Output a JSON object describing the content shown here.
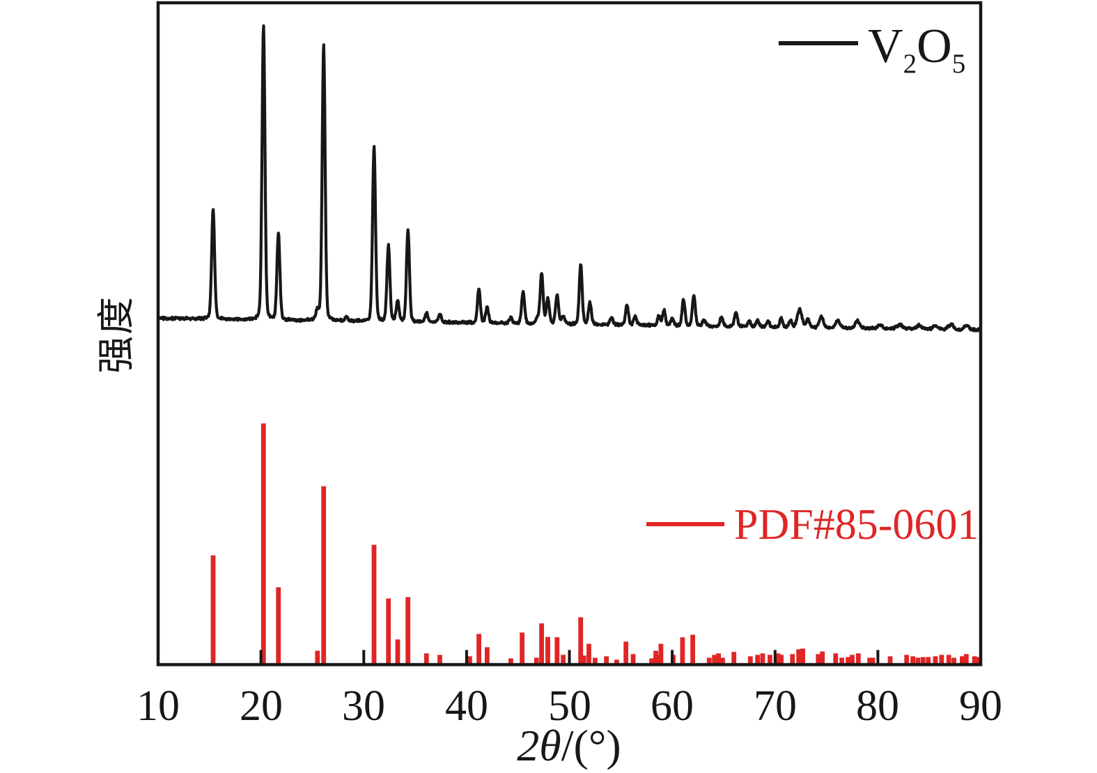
{
  "colors": {
    "background": "#ffffff",
    "ink": "#171717",
    "accent_red": "#e02525"
  },
  "y_axis": {
    "label": "强度"
  },
  "x_axis": {
    "label_italic": "2θ",
    "label_rest": "/(°)",
    "tick_labels": [
      "10",
      "20",
      "30",
      "40",
      "50",
      "60",
      "70",
      "80",
      "90"
    ]
  },
  "legends": {
    "sample": {
      "formula_base1": "V",
      "formula_sub1": "2",
      "formula_base2": "O",
      "formula_sub2": "5",
      "plain": "V2O5"
    },
    "reference": {
      "label": "PDF#85-0601"
    }
  },
  "chart_data": [
    {
      "type": "line",
      "name": "V2O5 measured XRD pattern",
      "xlabel": "2θ/(°)",
      "ylabel": "强度",
      "x_range": [
        10,
        90
      ],
      "x_ticks": [
        10,
        20,
        30,
        40,
        50,
        60,
        70,
        80,
        90
      ],
      "grid": false,
      "legend_position": "top-right",
      "peaks": [
        {
          "two_theta": 15.35,
          "rel_i": 37.5
        },
        {
          "two_theta": 20.25,
          "rel_i": 100
        },
        {
          "two_theta": 21.7,
          "rel_i": 29.5
        },
        {
          "two_theta": 25.5,
          "rel_i": 3.3
        },
        {
          "two_theta": 26.1,
          "rel_i": 94.0
        },
        {
          "two_theta": 28.3,
          "rel_i": 1.4
        },
        {
          "two_theta": 31.0,
          "rel_i": 59.6
        },
        {
          "two_theta": 32.4,
          "rel_i": 25.9
        },
        {
          "two_theta": 33.3,
          "rel_i": 6.9
        },
        {
          "two_theta": 34.3,
          "rel_i": 31.6
        },
        {
          "two_theta": 36.1,
          "rel_i": 2.9
        },
        {
          "two_theta": 37.4,
          "rel_i": 2.9
        },
        {
          "two_theta": 41.2,
          "rel_i": 11.6
        },
        {
          "two_theta": 42.0,
          "rel_i": 5.0
        },
        {
          "two_theta": 44.3,
          "rel_i": 1.9
        },
        {
          "two_theta": 45.5,
          "rel_i": 10.9
        },
        {
          "two_theta": 46.9,
          "rel_i": 1.9
        },
        {
          "two_theta": 47.3,
          "rel_i": 16.9
        },
        {
          "two_theta": 47.9,
          "rel_i": 8.6
        },
        {
          "two_theta": 48.8,
          "rel_i": 9.7
        },
        {
          "two_theta": 49.4,
          "rel_i": 2.9
        },
        {
          "two_theta": 51.1,
          "rel_i": 20.4
        },
        {
          "two_theta": 52.0,
          "rel_i": 7.4
        },
        {
          "two_theta": 54.1,
          "rel_i": 2.4
        },
        {
          "two_theta": 55.6,
          "rel_i": 6.9
        },
        {
          "two_theta": 56.4,
          "rel_i": 2.9
        },
        {
          "two_theta": 58.7,
          "rel_i": 3.3
        },
        {
          "two_theta": 59.2,
          "rel_i": 5.0
        },
        {
          "two_theta": 60.0,
          "rel_i": 2.4
        },
        {
          "two_theta": 61.1,
          "rel_i": 8.8
        },
        {
          "two_theta": 62.1,
          "rel_i": 10.5
        },
        {
          "two_theta": 63.1,
          "rel_i": 2.1
        },
        {
          "two_theta": 64.8,
          "rel_i": 3.3
        },
        {
          "two_theta": 66.2,
          "rel_i": 5.0
        },
        {
          "two_theta": 67.5,
          "rel_i": 1.9
        },
        {
          "two_theta": 68.3,
          "rel_i": 2.1
        },
        {
          "two_theta": 69.3,
          "rel_i": 2.1
        },
        {
          "two_theta": 70.6,
          "rel_i": 3.1
        },
        {
          "two_theta": 71.5,
          "rel_i": 2.1
        },
        {
          "two_theta": 72.4,
          "rel_i": 6.2,
          "w": 0.22
        },
        {
          "two_theta": 73.2,
          "rel_i": 2.9
        },
        {
          "two_theta": 74.5,
          "rel_i": 3.8,
          "w": 0.2
        },
        {
          "two_theta": 76.1,
          "rel_i": 2.6,
          "w": 0.2
        },
        {
          "two_theta": 78.0,
          "rel_i": 2.6,
          "w": 0.22
        },
        {
          "two_theta": 80.2,
          "rel_i": 1.2,
          "w": 0.25
        },
        {
          "two_theta": 82.1,
          "rel_i": 1.4,
          "w": 0.25
        },
        {
          "two_theta": 84.0,
          "rel_i": 1.4,
          "w": 0.25
        },
        {
          "two_theta": 85.6,
          "rel_i": 1.4,
          "w": 0.25
        },
        {
          "two_theta": 87.1,
          "rel_i": 1.7,
          "w": 0.25
        },
        {
          "two_theta": 88.6,
          "rel_i": 1.4,
          "w": 0.25
        }
      ]
    },
    {
      "type": "stem",
      "name": "PDF#85-0601 reference pattern",
      "legend_position": "middle-right",
      "sticks": [
        {
          "two_theta": 15.35,
          "rel_i": 45.0
        },
        {
          "two_theta": 20.25,
          "rel_i": 100
        },
        {
          "two_theta": 21.7,
          "rel_i": 31.7
        },
        {
          "two_theta": 25.5,
          "rel_i": 5.2
        },
        {
          "two_theta": 26.1,
          "rel_i": 73.8
        },
        {
          "two_theta": 31.0,
          "rel_i": 49.4
        },
        {
          "two_theta": 32.4,
          "rel_i": 27.0
        },
        {
          "two_theta": 33.3,
          "rel_i": 9.9
        },
        {
          "two_theta": 34.3,
          "rel_i": 27.6
        },
        {
          "two_theta": 36.1,
          "rel_i": 4.1
        },
        {
          "two_theta": 37.4,
          "rel_i": 3.5
        },
        {
          "two_theta": 40.3,
          "rel_i": 2.9
        },
        {
          "two_theta": 41.2,
          "rel_i": 12.2
        },
        {
          "two_theta": 42.0,
          "rel_i": 6.7
        },
        {
          "two_theta": 44.3,
          "rel_i": 2.0
        },
        {
          "two_theta": 45.4,
          "rel_i": 12.8
        },
        {
          "two_theta": 46.8,
          "rel_i": 2.3
        },
        {
          "two_theta": 47.3,
          "rel_i": 16.6
        },
        {
          "two_theta": 47.9,
          "rel_i": 11.0
        },
        {
          "two_theta": 48.8,
          "rel_i": 10.8
        },
        {
          "two_theta": 49.4,
          "rel_i": 3.5
        },
        {
          "two_theta": 51.1,
          "rel_i": 19.2
        },
        {
          "two_theta": 51.4,
          "rel_i": 3.2
        },
        {
          "two_theta": 51.9,
          "rel_i": 8.1
        },
        {
          "two_theta": 52.5,
          "rel_i": 2.3
        },
        {
          "two_theta": 53.6,
          "rel_i": 2.9
        },
        {
          "two_theta": 54.6,
          "rel_i": 1.5
        },
        {
          "two_theta": 55.5,
          "rel_i": 9.0
        },
        {
          "two_theta": 56.2,
          "rel_i": 3.8
        },
        {
          "two_theta": 58.0,
          "rel_i": 2.0
        },
        {
          "two_theta": 58.4,
          "rel_i": 5.2
        },
        {
          "two_theta": 58.6,
          "rel_i": 3.5
        },
        {
          "two_theta": 58.9,
          "rel_i": 8.1
        },
        {
          "two_theta": 60.1,
          "rel_i": 3.5
        },
        {
          "two_theta": 61.0,
          "rel_i": 10.8
        },
        {
          "two_theta": 62.0,
          "rel_i": 11.9
        },
        {
          "two_theta": 63.6,
          "rel_i": 2.3
        },
        {
          "two_theta": 64.1,
          "rel_i": 3.5
        },
        {
          "two_theta": 64.5,
          "rel_i": 4.1
        },
        {
          "two_theta": 64.9,
          "rel_i": 2.3
        },
        {
          "two_theta": 66.0,
          "rel_i": 4.7
        },
        {
          "two_theta": 67.6,
          "rel_i": 2.9
        },
        {
          "two_theta": 68.3,
          "rel_i": 3.5
        },
        {
          "two_theta": 68.8,
          "rel_i": 4.1
        },
        {
          "two_theta": 69.5,
          "rel_i": 3.5
        },
        {
          "two_theta": 70.3,
          "rel_i": 4.1
        },
        {
          "two_theta": 70.6,
          "rel_i": 3.5
        },
        {
          "two_theta": 71.7,
          "rel_i": 3.8
        },
        {
          "two_theta": 72.3,
          "rel_i": 5.8
        },
        {
          "two_theta": 72.7,
          "rel_i": 6.1
        },
        {
          "two_theta": 74.2,
          "rel_i": 3.8
        },
        {
          "two_theta": 74.6,
          "rel_i": 4.9
        },
        {
          "two_theta": 75.9,
          "rel_i": 4.1
        },
        {
          "two_theta": 76.5,
          "rel_i": 2.3
        },
        {
          "two_theta": 77.1,
          "rel_i": 2.6
        },
        {
          "two_theta": 77.5,
          "rel_i": 3.5
        },
        {
          "two_theta": 78.1,
          "rel_i": 4.1
        },
        {
          "two_theta": 79.2,
          "rel_i": 2.3
        },
        {
          "two_theta": 79.5,
          "rel_i": 2.3
        },
        {
          "two_theta": 81.2,
          "rel_i": 2.9
        },
        {
          "two_theta": 82.8,
          "rel_i": 3.5
        },
        {
          "two_theta": 83.4,
          "rel_i": 2.9
        },
        {
          "two_theta": 83.9,
          "rel_i": 2.3
        },
        {
          "two_theta": 84.4,
          "rel_i": 2.6
        },
        {
          "two_theta": 84.9,
          "rel_i": 2.6
        },
        {
          "two_theta": 85.6,
          "rel_i": 2.9
        },
        {
          "two_theta": 86.2,
          "rel_i": 3.5
        },
        {
          "two_theta": 86.9,
          "rel_i": 3.5
        },
        {
          "two_theta": 87.4,
          "rel_i": 2.3
        },
        {
          "two_theta": 88.2,
          "rel_i": 2.9
        },
        {
          "two_theta": 88.6,
          "rel_i": 3.8
        },
        {
          "two_theta": 89.4,
          "rel_i": 2.9
        },
        {
          "two_theta": 89.7,
          "rel_i": 2.6
        }
      ]
    }
  ]
}
